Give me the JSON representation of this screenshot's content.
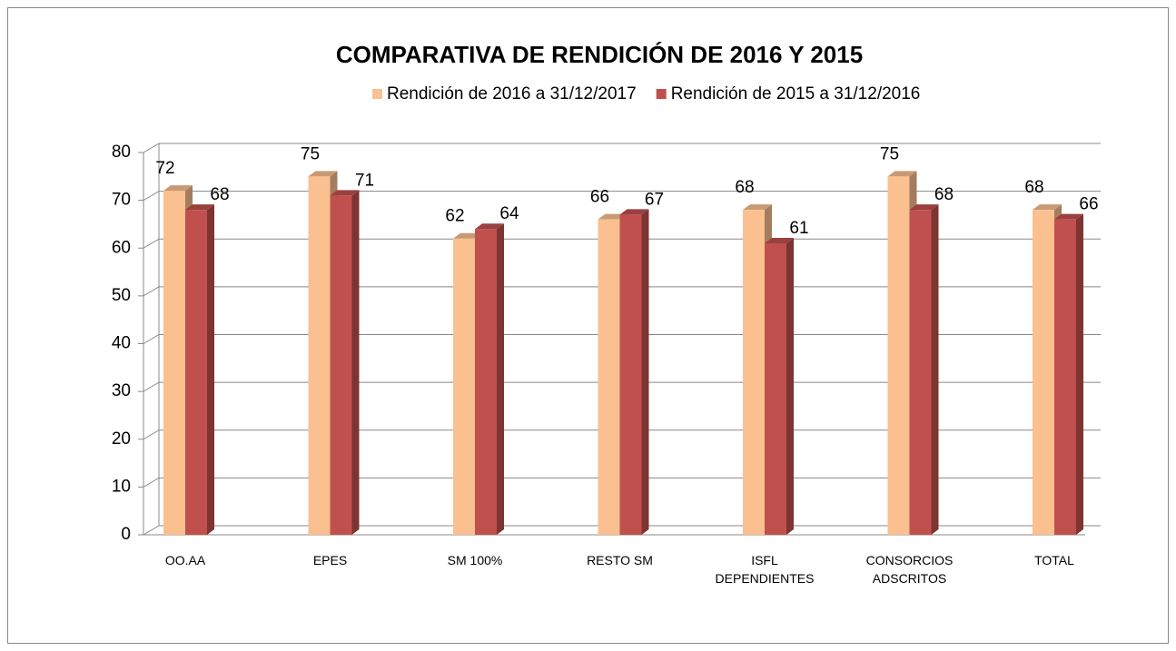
{
  "chart_data": {
    "type": "bar3d",
    "title": "COMPARATIVA DE RENDICIÓN DE 2016 Y 2015",
    "categories": [
      "OO.AA",
      "EPES",
      "SM 100%",
      "RESTO SM",
      "ISFL DEPENDIENTES",
      "CONSORCIOS ADSCRITOS",
      "TOTAL"
    ],
    "series": [
      {
        "name": "Rendición de 2016 a 31/12/2017",
        "color": "#fac090",
        "values": [
          72,
          75,
          62,
          66,
          68,
          75,
          68
        ]
      },
      {
        "name": "Rendición de 2015 a 31/12/2016",
        "color": "#c0504d",
        "values": [
          68,
          71,
          64,
          67,
          61,
          68,
          66
        ]
      }
    ],
    "ylim": [
      0,
      80
    ],
    "yticks": [
      0,
      10,
      20,
      30,
      40,
      50,
      60,
      70,
      80
    ],
    "grid": true,
    "legend": "top"
  }
}
